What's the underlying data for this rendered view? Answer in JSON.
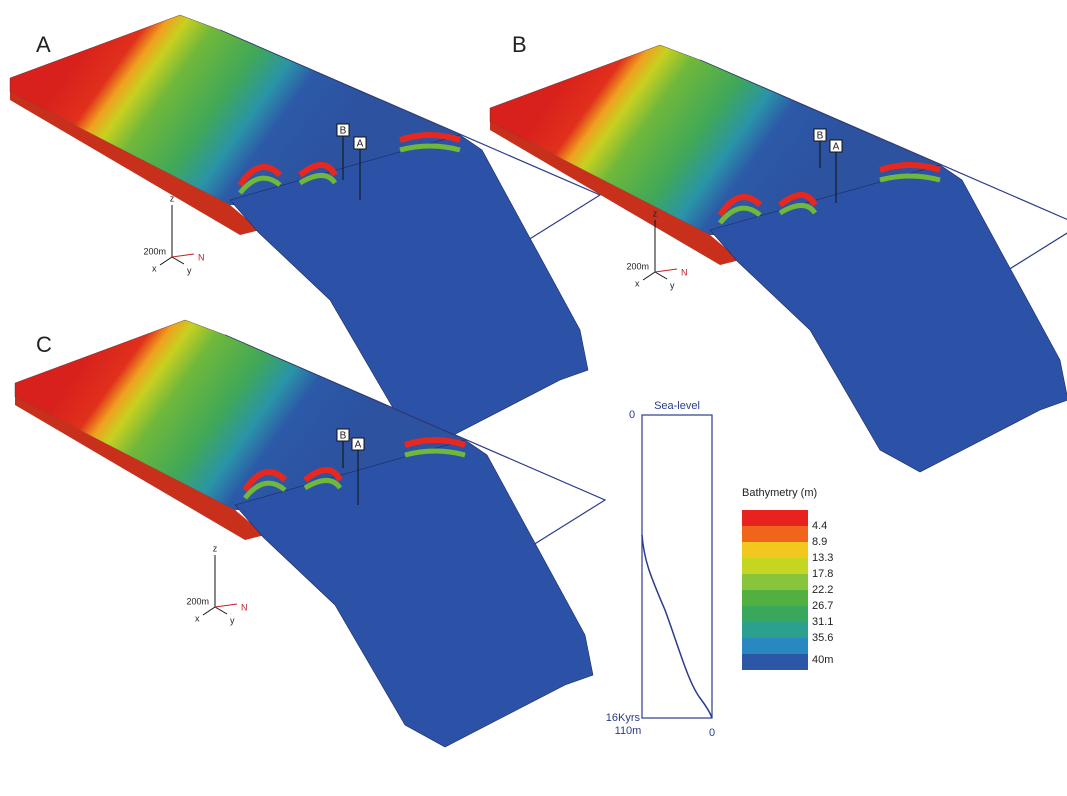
{
  "panels": [
    {
      "label": "A",
      "markers": [
        "B",
        "A"
      ],
      "axes": {
        "z": "z",
        "scale": "200m",
        "x": "x",
        "y": "y",
        "north": "N"
      }
    },
    {
      "label": "B",
      "markers": [
        "B",
        "A"
      ],
      "axes": {
        "z": "z",
        "scale": "200m",
        "x": "x",
        "y": "y",
        "north": "N"
      }
    },
    {
      "label": "C",
      "markers": [
        "B",
        "A"
      ],
      "axes": {
        "z": "z",
        "scale": "200m",
        "x": "x",
        "y": "y",
        "north": "N"
      }
    }
  ],
  "sea_level": {
    "title": "Sea-level",
    "top_left": "0",
    "bottom_left": "16Kyrs",
    "bottom_axis_left": "110m",
    "bottom_axis_right": "0"
  },
  "legend": {
    "title": "Bathymetry (m)",
    "labels": [
      "4.4",
      "8.9",
      "13.3",
      "17.8",
      "22.2",
      "26.7",
      "31.1",
      "35.6",
      "40m"
    ]
  }
}
